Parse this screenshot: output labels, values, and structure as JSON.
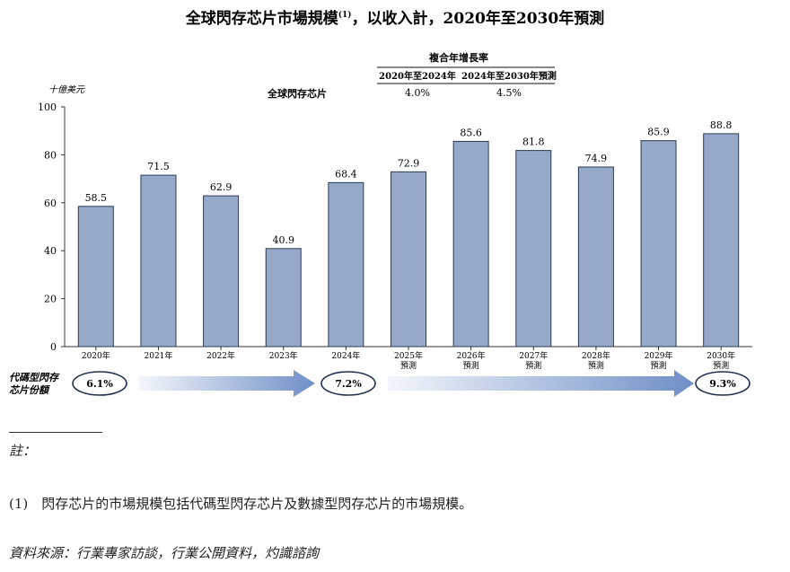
{
  "title": {
    "main_a": "全球閃存芯片市場規模",
    "footnote_mark": "(1)",
    "main_b": "，以收入計，2020年至2030年預測"
  },
  "cagr": {
    "header": "複合年增長率",
    "periods": [
      "2020年至2024年",
      "2024年至2030年預測"
    ],
    "series_label": "全球閃存芯片",
    "values": [
      "4.0%",
      "4.5%"
    ]
  },
  "share": {
    "label_lines": [
      "代碼型閃存",
      "芯片份額"
    ],
    "values": [
      "6.1%",
      "7.2%",
      "9.3%"
    ],
    "arrow_color": "#6f8fc7"
  },
  "notes": {
    "heading": "註：",
    "footnote": "(1)　閃存芯片的市場規模包括代碼型閃存芯片及數據型閃存芯片的市場規模。",
    "source": "資料來源：行業專家訪談，行業公開資料，灼識諮詢"
  },
  "chart_data": {
    "type": "bar",
    "ylabel": "十億美元",
    "ylim": [
      0,
      100
    ],
    "yticks": [
      0,
      20,
      40,
      60,
      80,
      100
    ],
    "categories": [
      [
        "2020年"
      ],
      [
        "2021年"
      ],
      [
        "2022年"
      ],
      [
        "2023年"
      ],
      [
        "2024年"
      ],
      [
        "2025年",
        "預測"
      ],
      [
        "2026年",
        "預測"
      ],
      [
        "2027年",
        "預測"
      ],
      [
        "2028年",
        "預測"
      ],
      [
        "2029年",
        "預測"
      ],
      [
        "2030年",
        "預測"
      ]
    ],
    "values": [
      58.5,
      71.5,
      62.9,
      40.9,
      68.4,
      72.9,
      85.6,
      81.8,
      74.9,
      85.9,
      88.8
    ],
    "data_labels": [
      "58.5",
      "71.5",
      "62.9",
      "40.9",
      "68.4",
      "72.9",
      "85.6",
      "81.8",
      "74.9",
      "85.9",
      "88.8"
    ],
    "bar_color": "#97a9c8",
    "grid": false
  }
}
